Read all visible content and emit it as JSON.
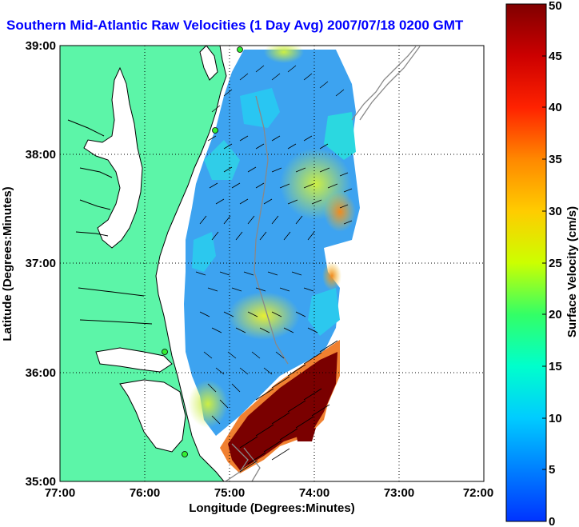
{
  "title": "Southern Mid-Atlantic Raw Velocities (1 Day Avg) 2007/07/18 0200 GMT",
  "axes": {
    "xlabel": "Longitude (Degrees:Minutes)",
    "ylabel": "Latitude (Degrees:Minutes)",
    "x_ticks": [
      "77:00",
      "76:00",
      "75:00",
      "74:00",
      "73:00",
      "72:00"
    ],
    "y_ticks": [
      "39:00",
      "38:00",
      "37:00",
      "36:00",
      "35:00"
    ]
  },
  "colorbar": {
    "label": "Surface Velocity (cm/s)",
    "ticks": [
      "0",
      "5",
      "10",
      "15",
      "20",
      "25",
      "30",
      "35",
      "40",
      "45",
      "50"
    ],
    "min": 0,
    "max": 50
  },
  "chart_data": {
    "type": "heatmap",
    "title": "Southern Mid-Atlantic Raw Velocities (1 Day Avg) 2007/07/18 0200 GMT",
    "xlabel": "Longitude (Degrees:Minutes)",
    "ylabel": "Latitude (Degrees:Minutes)",
    "xlim": [
      -77,
      -72
    ],
    "ylim": [
      35,
      39
    ],
    "color_range": [
      0,
      50
    ],
    "colorbar_label": "Surface Velocity (cm/s)",
    "grid": true
  },
  "colors": {
    "land": "#5cf5a8",
    "title": "#0000ff",
    "coast": "#000000",
    "stations": "#33ee33"
  }
}
